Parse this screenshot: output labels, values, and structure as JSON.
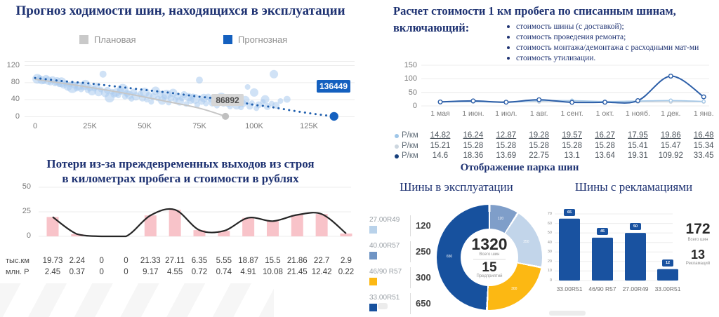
{
  "colors": {
    "navy_title": "#1e3272",
    "accent_blue": "#1460bf",
    "planned_gray": "#c6c6c6",
    "bubble_blue": "#a9cbef",
    "pink_bar": "#f8c3c9",
    "loss_line": "#262626",
    "cost_series": [
      "#a6c9e8",
      "#ccd3da",
      "#2d5fa8"
    ],
    "donut": [
      "#7f9ec9",
      "#c2d5ea",
      "#fcb813",
      "#17519e"
    ],
    "donut_legend": [
      "#b9d2ea",
      "#6f94c4",
      "#fcb813",
      "#17519e"
    ],
    "claims_bar": "#1952a0",
    "grid": "#ececec"
  },
  "forecast": {
    "title": "Прогноз ходимости шин, находящихся в эксплуатации",
    "legend": [
      {
        "label": "Плановая"
      },
      {
        "label": "Прогнозная"
      }
    ],
    "planned_end_label": "86892",
    "forecast_end_label": "136449"
  },
  "losses": {
    "title_line1": "Потери из-за преждевременных выходов из строя",
    "title_line2": "в километрах пробега и стоимости в рублях"
  },
  "cost": {
    "title_line1": "Расчет стоимости 1 км пробега по списанным шинам,",
    "title_line2": "включающий:",
    "bullets": [
      "стоимость шины (с доставкой);",
      "стоимость проведения ремонта;",
      "стоимость монтажа/демонтажа с расходными мат-ми",
      "стоимость утилизации."
    ]
  },
  "park": {
    "title": "Отображение парка шин",
    "donut_title": "Шины в эксплуатации",
    "bars_title": "Шины с рекламациями"
  },
  "chart_data": [
    {
      "type": "scatter",
      "title": "Прогноз ходимости шин, находящихся в эксплуатации",
      "legend": [
        "Плановая",
        "Прогнозная"
      ],
      "x_ticks": [
        "0",
        "25K",
        "50K",
        "75K",
        "100K",
        "125K"
      ],
      "y_ticks": [
        120,
        80,
        40,
        0
      ],
      "xlim_thousand_km": [
        0,
        140
      ],
      "ylim": [
        0,
        130
      ],
      "x_in_thousands": true,
      "points": [
        [
          1,
          89,
          7
        ],
        [
          2,
          91,
          4
        ],
        [
          3,
          86,
          6
        ],
        [
          4,
          83,
          4
        ],
        [
          5,
          90,
          5
        ],
        [
          6,
          85,
          6
        ],
        [
          7,
          80,
          4
        ],
        [
          8,
          87,
          5
        ],
        [
          9,
          78,
          4
        ],
        [
          10,
          83,
          6
        ],
        [
          11,
          76,
          4
        ],
        [
          12,
          81,
          7
        ],
        [
          13,
          74,
          5
        ],
        [
          14,
          79,
          4
        ],
        [
          15,
          71,
          6
        ],
        [
          16,
          76,
          4
        ],
        [
          17,
          69,
          8
        ],
        [
          18,
          74,
          5
        ],
        [
          19,
          66,
          4
        ],
        [
          20,
          72,
          6
        ],
        [
          21,
          64,
          4
        ],
        [
          22,
          70,
          5
        ],
        [
          23,
          75,
          7
        ],
        [
          24,
          62,
          4
        ],
        [
          25,
          68,
          5
        ],
        [
          26,
          60,
          6
        ],
        [
          27,
          66,
          4
        ],
        [
          28,
          71,
          5
        ],
        [
          29,
          58,
          6
        ],
        [
          30,
          64,
          4
        ],
        [
          31,
          100,
          5
        ],
        [
          32,
          56,
          6
        ],
        [
          33,
          62,
          5
        ],
        [
          34,
          45,
          7
        ],
        [
          35,
          59,
          4
        ],
        [
          36,
          53,
          5
        ],
        [
          37,
          57,
          6
        ],
        [
          38,
          50,
          4
        ],
        [
          39,
          61,
          5
        ],
        [
          40,
          64,
          8
        ],
        [
          41,
          47,
          4
        ],
        [
          42,
          55,
          5
        ],
        [
          43,
          51,
          6
        ],
        [
          44,
          42,
          4
        ],
        [
          45,
          58,
          5
        ],
        [
          46,
          48,
          6
        ],
        [
          48,
          54,
          4
        ],
        [
          49,
          44,
          5
        ],
        [
          50,
          57,
          7
        ],
        [
          51,
          40,
          4
        ],
        [
          52,
          50,
          5
        ],
        [
          53,
          35,
          4
        ],
        [
          54,
          47,
          5
        ],
        [
          55,
          61,
          6
        ],
        [
          56,
          43,
          4
        ],
        [
          57,
          53,
          5
        ],
        [
          58,
          38,
          6
        ],
        [
          59,
          46,
          4
        ],
        [
          60,
          52,
          7
        ],
        [
          61,
          33,
          4
        ],
        [
          62,
          44,
          5
        ],
        [
          63,
          56,
          6
        ],
        [
          64,
          40,
          4
        ],
        [
          65,
          48,
          5
        ],
        [
          66,
          36,
          6
        ],
        [
          67,
          43,
          4
        ],
        [
          68,
          52,
          5
        ],
        [
          69,
          30,
          4
        ],
        [
          70,
          46,
          6
        ],
        [
          71,
          38,
          5
        ],
        [
          72,
          48,
          4
        ],
        [
          73,
          42,
          7
        ],
        [
          74,
          28,
          4
        ],
        [
          75,
          86,
          5
        ],
        [
          76,
          36,
          5
        ],
        [
          77,
          44,
          6
        ],
        [
          78,
          31,
          4
        ],
        [
          79,
          46,
          5
        ],
        [
          80,
          40,
          4
        ],
        [
          81,
          34,
          6
        ],
        [
          82,
          43,
          5
        ],
        [
          83,
          26,
          4
        ],
        [
          84,
          37,
          5
        ],
        [
          85,
          45,
          7
        ],
        [
          86,
          30,
          4
        ],
        [
          87,
          39,
          5
        ],
        [
          88,
          33,
          6
        ],
        [
          89,
          24,
          4
        ],
        [
          90,
          36,
          5
        ],
        [
          91,
          43,
          4
        ],
        [
          92,
          27,
          6
        ],
        [
          93,
          34,
          5
        ],
        [
          94,
          22,
          4
        ],
        [
          95,
          31,
          5
        ],
        [
          96,
          39,
          6
        ],
        [
          97,
          70,
          4
        ],
        [
          98,
          25,
          5
        ],
        [
          99,
          32,
          4
        ],
        [
          100,
          57,
          6
        ],
        [
          101,
          20,
          4
        ],
        [
          102,
          28,
          5
        ],
        [
          104,
          35,
          4
        ],
        [
          105,
          41,
          6
        ],
        [
          106,
          24,
          5
        ],
        [
          108,
          31,
          4
        ],
        [
          109,
          100,
          6
        ],
        [
          110,
          27,
          5
        ],
        [
          112,
          37,
          4
        ],
        [
          115,
          41,
          5
        ]
      ],
      "forecast_trend": [
        [
          0,
          91
        ],
        [
          12,
          84
        ],
        [
          25,
          78
        ],
        [
          37,
          71
        ],
        [
          50,
          63
        ],
        [
          62,
          56
        ],
        [
          75,
          47
        ],
        [
          87,
          41
        ],
        [
          95,
          33
        ],
        [
          100,
          28
        ],
        [
          105,
          25
        ],
        [
          110,
          21
        ],
        [
          118,
          14
        ],
        [
          127,
          7
        ],
        [
          136.449,
          1
        ]
      ],
      "planned_line": [
        [
          0,
          88
        ],
        [
          20,
          73
        ],
        [
          40,
          56
        ],
        [
          60,
          36
        ],
        [
          75,
          20
        ],
        [
          86.892,
          1
        ]
      ],
      "planned_end_label": "86892",
      "forecast_end_label": "136449"
    },
    {
      "type": "bar",
      "title": "Потери из-за преждевременных выходов из строя в километрах пробега и стоимости в рублях",
      "y_ticks": [
        50,
        25,
        0
      ],
      "ylim": [
        0,
        50
      ],
      "series": [
        {
          "name": "тыс.км",
          "values": [
            19.73,
            2.24,
            0,
            0,
            21.33,
            27.11,
            6.35,
            5.55,
            18.87,
            15.5,
            21.86,
            22.7,
            2.9
          ]
        },
        {
          "name": "млн. Р",
          "values": [
            2.45,
            0.37,
            0,
            0,
            9.17,
            4.55,
            0.72,
            0.74,
            4.91,
            10.08,
            21.45,
            12.42,
            0.22
          ]
        }
      ],
      "bars_series": "тыс.км",
      "line_series": "тыс.км"
    },
    {
      "type": "line",
      "title": "Расчет стоимости 1 км пробега по списанным шинам",
      "categories": [
        "1 мая",
        "1 июн.",
        "1 июл.",
        "1 авг.",
        "1 сент.",
        "1 окт.",
        "1 нояб.",
        "1 дек.",
        "1 янв."
      ],
      "y_ticks": [
        150,
        100,
        50,
        0
      ],
      "ylim": [
        0,
        150
      ],
      "series": [
        {
          "name": "Р/км",
          "values": [
            14.82,
            16.24,
            12.87,
            19.28,
            19.57,
            16.27,
            17.95,
            19.86,
            16.48
          ]
        },
        {
          "name": "Р/км",
          "values": [
            15.21,
            15.28,
            15.28,
            15.28,
            15.28,
            15.28,
            15.41,
            15.47,
            15.34
          ]
        },
        {
          "name": "Р/км",
          "values": [
            14.6,
            18.36,
            13.69,
            22.75,
            13.1,
            13.64,
            19.31,
            109.92,
            33.45
          ]
        }
      ]
    },
    {
      "type": "pie",
      "title": "Шины в эксплуатации",
      "categories": [
        "27.00R49",
        "40.00R57",
        "46/90 R57",
        "33.00R51"
      ],
      "values": [
        120,
        250,
        300,
        650
      ],
      "center": {
        "total": "1320",
        "total_caption": "Всего шин",
        "enterprises": "15",
        "enterprises_caption": "Предприятий"
      }
    },
    {
      "type": "bar",
      "title": "Шины с рекламациями",
      "categories": [
        "33.00R51",
        "46/90 R57",
        "27.00R49",
        "33.00R51"
      ],
      "values": [
        65,
        45,
        50,
        12
      ],
      "ylim": [
        0,
        70
      ],
      "y_ticks": [
        0,
        10,
        20,
        30,
        40,
        50,
        60,
        70
      ],
      "stats": {
        "total": "172",
        "total_caption": "Всего шин",
        "claims": "13",
        "claims_caption": "Рекламаций"
      }
    }
  ]
}
